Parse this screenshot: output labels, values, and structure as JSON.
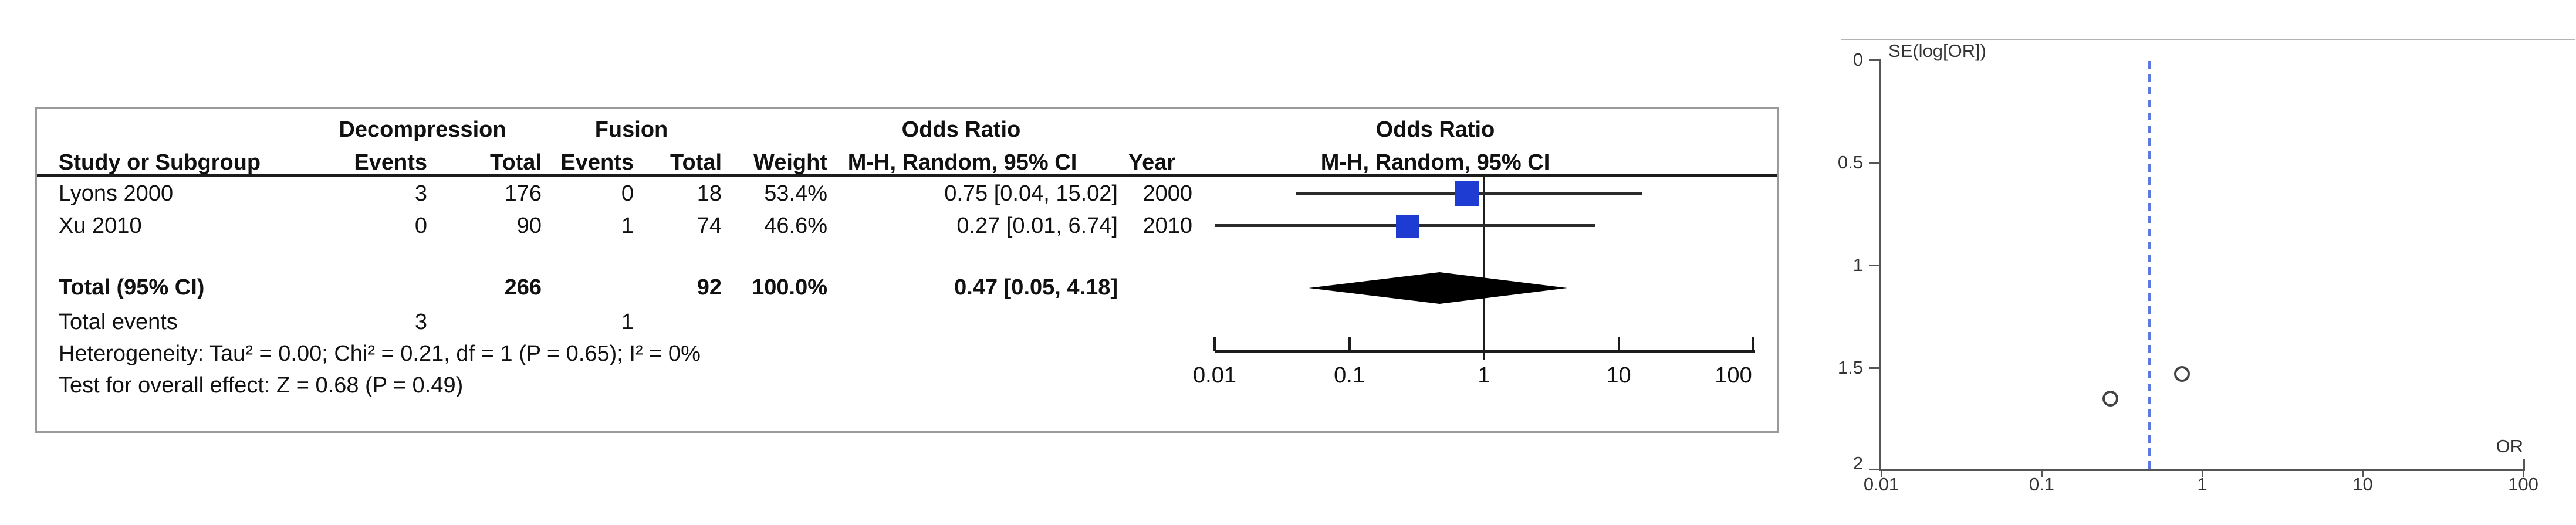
{
  "forest": {
    "group_headers": {
      "treatment": "Decompression",
      "control": "Fusion",
      "odds_ratio_stat": "Odds Ratio",
      "odds_ratio_plot": "Odds Ratio"
    },
    "col_headers": {
      "study": "Study or Subgroup",
      "events1": "Events",
      "total1": "Total",
      "events2": "Events",
      "total2": "Total",
      "weight": "Weight",
      "mh_ci": "M-H, Random, 95% CI",
      "year": "Year",
      "mh_ci_plot": "M-H, Random, 95% CI"
    },
    "rows": [
      {
        "study": "Lyons 2000",
        "events1": "3",
        "total1": "176",
        "events2": "0",
        "total2": "18",
        "weight": "53.4%",
        "or_ci": "0.75 [0.04, 15.02]",
        "year": "2000"
      },
      {
        "study": "Xu 2010",
        "events1": "0",
        "total1": "90",
        "events2": "1",
        "total2": "74",
        "weight": "46.6%",
        "or_ci": "0.27 [0.01, 6.74]",
        "year": "2010"
      }
    ],
    "total_row": {
      "label": "Total (95% CI)",
      "total1": "266",
      "total2": "92",
      "weight": "100.0%",
      "or_ci": "0.47 [0.05, 4.18]"
    },
    "total_events": {
      "label": "Total events",
      "events1": "3",
      "events2": "1"
    },
    "heterogeneity": "Heterogeneity: Tau² = 0.00; Chi² = 0.21, df = 1 (P = 0.65); I² = 0%",
    "overall_effect": "Test for overall effect: Z = 0.68 (P = 0.49)"
  },
  "funnel": {
    "y_axis_label": "SE(log[OR])",
    "x_axis_label": "OR"
  },
  "colors": {
    "study_square_blue": "#1f3cd2",
    "diamond_black": "#000000",
    "funnel_dashed_blue": "#5b79e0",
    "forest_line_black": "#1c1c1c",
    "funnel_axis_gray": "#555555",
    "panel_border_gray": "#9a9a9a"
  },
  "chart_data": [
    {
      "type": "forest",
      "title": "Odds Ratio, M-H, Random, 95% CI (Decompression vs Fusion)",
      "x_scale": "log",
      "axis_ticks": [
        0.01,
        0.1,
        1,
        10,
        100
      ],
      "xlim": [
        0.01,
        100
      ],
      "studies": [
        {
          "name": "Lyons 2000",
          "or": 0.75,
          "ci_low": 0.04,
          "ci_high": 15.02,
          "weight_pct": 53.4,
          "year": 2000
        },
        {
          "name": "Xu 2010",
          "or": 0.27,
          "ci_low": 0.01,
          "ci_high": 6.74,
          "weight_pct": 46.6,
          "year": 2010
        }
      ],
      "total": {
        "or": 0.47,
        "ci_low": 0.05,
        "ci_high": 4.18,
        "weight_pct": 100.0
      },
      "heterogeneity": {
        "tau2": 0.0,
        "chi2": 0.21,
        "df": 1,
        "p": 0.65,
        "i2_pct": 0
      },
      "overall_effect": {
        "z": 0.68,
        "p": 0.49
      }
    },
    {
      "type": "scatter",
      "title": "Funnel plot",
      "xlabel": "OR",
      "ylabel": "SE(log[OR])",
      "x_scale": "log",
      "xlim": [
        0.01,
        100
      ],
      "ylim_inverted": [
        0,
        2
      ],
      "y_ticks": [
        0,
        0.5,
        1,
        1.5,
        2
      ],
      "x_ticks": [
        0.01,
        0.1,
        1,
        10,
        100
      ],
      "points": [
        {
          "or": 0.75,
          "se": 1.53
        },
        {
          "or": 0.27,
          "se": 1.65
        }
      ],
      "pooled_or_dashed_line": 0.47
    }
  ]
}
